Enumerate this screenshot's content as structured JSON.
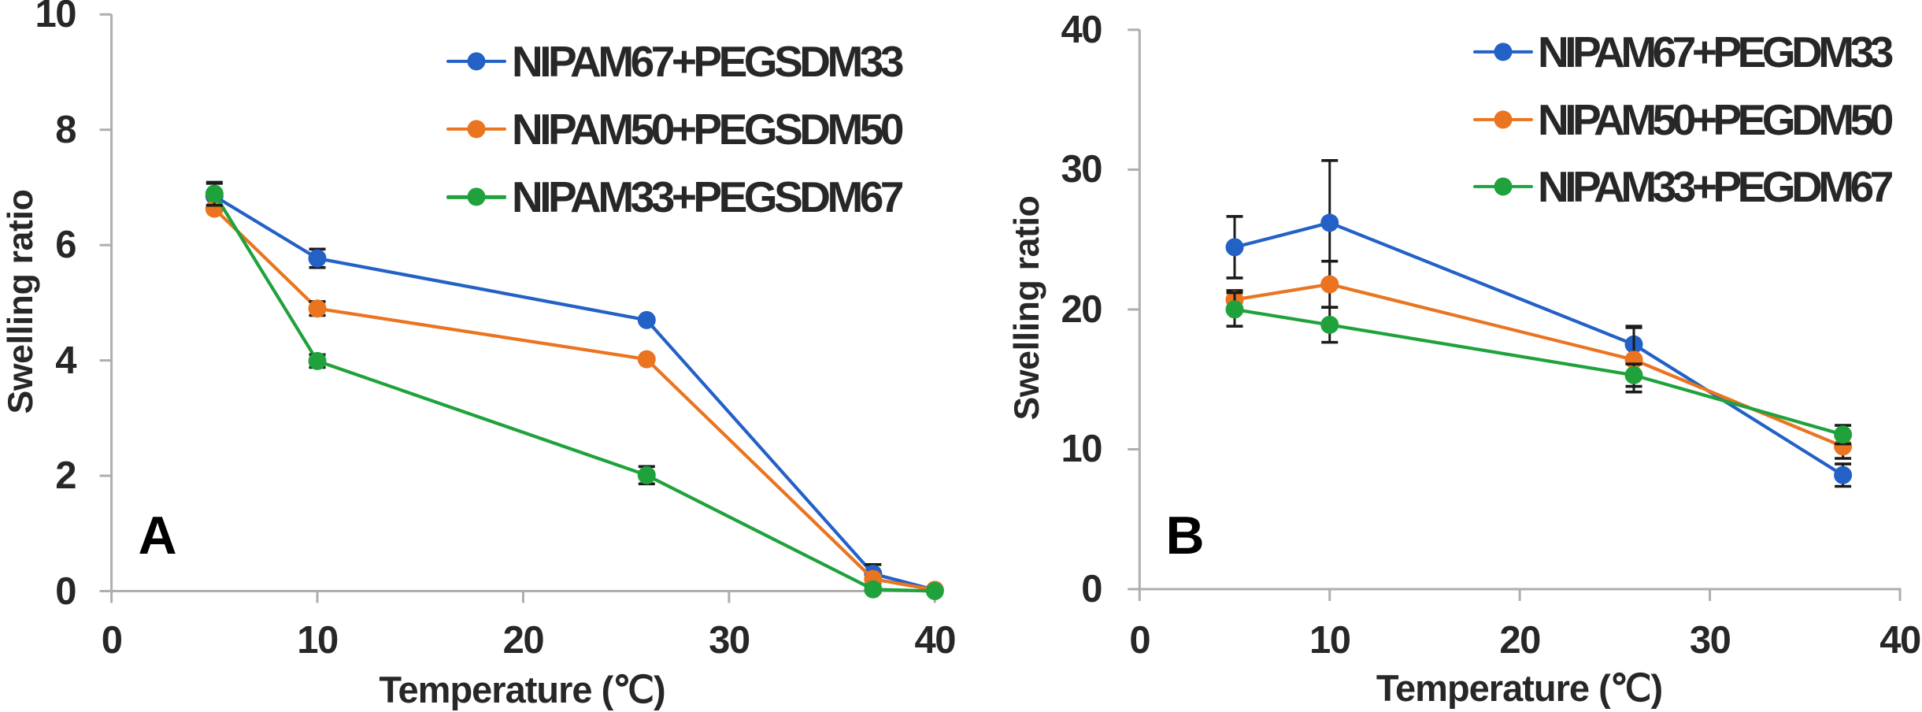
{
  "figure": {
    "background": "#ffffff",
    "axis_color": "#aeaeae",
    "error_bar_color": "#1b1b1b",
    "text_color": "#272727",
    "panel_letter_color": "#000000"
  },
  "chart_data": [
    {
      "type": "line",
      "panel_label": "A",
      "xlabel": "Temperature (℃)",
      "ylabel": "Swelling ratio",
      "xlim": [
        0,
        40
      ],
      "ylim": [
        0,
        10
      ],
      "x_ticks": [
        "0",
        "10",
        "20",
        "30",
        "40"
      ],
      "y_ticks": [
        "0",
        "2",
        "4",
        "6",
        "8",
        "10"
      ],
      "grid": false,
      "legend_position": "upper right inside",
      "x": [
        5,
        10,
        26,
        37,
        40
      ],
      "series": [
        {
          "name": "NIPAM67+PEGSDM33",
          "color": "#2361c6",
          "values": [
            6.85,
            5.77,
            4.7,
            0.3,
            0.02
          ],
          "errors": [
            0.22,
            0.16,
            0,
            0.16,
            0
          ]
        },
        {
          "name": "NIPAM50+PEGSDM50",
          "color": "#ea7420",
          "values": [
            6.63,
            4.9,
            4.02,
            0.21,
            0.02
          ],
          "errors": [
            0,
            0.12,
            0,
            0,
            0
          ]
        },
        {
          "name": "NIPAM33+PEGSDM67",
          "color": "#1fa23c",
          "values": [
            6.89,
            3.99,
            2.01,
            0.03,
            0.0
          ],
          "errors": [
            0.2,
            0.11,
            0.15,
            0.05,
            0
          ]
        }
      ]
    },
    {
      "type": "line",
      "panel_label": "B",
      "xlabel": "Temperature (℃)",
      "ylabel": "Swelling ratio",
      "xlim": [
        0,
        40
      ],
      "ylim": [
        0,
        40
      ],
      "x_ticks": [
        "0",
        "10",
        "20",
        "30",
        "40"
      ],
      "y_ticks": [
        "0",
        "10",
        "20",
        "30",
        "40"
      ],
      "grid": false,
      "legend_position": "upper right inside",
      "x": [
        5,
        10,
        26,
        37
      ],
      "series": [
        {
          "name": "NIPAM67+PEGDM33",
          "color": "#2361c6",
          "values": [
            24.45,
            26.2,
            17.5,
            8.15
          ],
          "errors": [
            2.2,
            4.45,
            1.3,
            0.8
          ]
        },
        {
          "name": "NIPAM50+PEGDM50",
          "color": "#ea7420",
          "values": [
            20.7,
            21.8,
            16.4,
            10.2
          ],
          "errors": [
            0.65,
            1.65,
            2.3,
            0.85
          ]
        },
        {
          "name": "NIPAM33+PEGDM67",
          "color": "#1fa23c",
          "values": [
            20.0,
            18.9,
            15.3,
            11.05
          ],
          "errors": [
            1.2,
            1.25,
            0.8,
            0.66
          ]
        }
      ]
    }
  ]
}
